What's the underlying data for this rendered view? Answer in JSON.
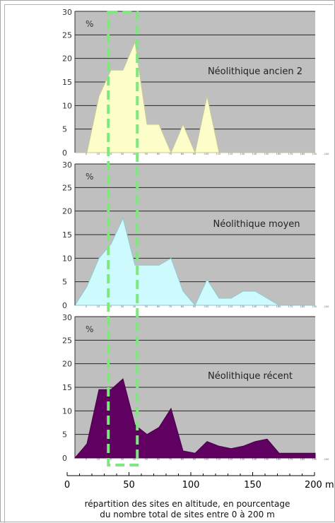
{
  "chart_data": {
    "type": "area",
    "y_unit_label": "%",
    "ylim": [
      0,
      30
    ],
    "y_ticks": [
      "0",
      "5",
      "10",
      "15",
      "20",
      "25",
      "30"
    ],
    "x_axis": {
      "unit": "m",
      "xlim": [
        0,
        200
      ],
      "tick_labels": [
        "0",
        "50",
        "100",
        "150",
        "200 m"
      ],
      "ticks": [
        0,
        50,
        100,
        150,
        200
      ]
    },
    "x_categories": [
      "0",
      "10",
      "20",
      "30",
      "40",
      "50",
      "60",
      "70",
      "80",
      "90",
      "100",
      "110",
      "120",
      "130",
      "140",
      "150",
      "160",
      "170",
      "180",
      "190",
      "200"
    ],
    "series": [
      {
        "name": "Néolithique ancien 2",
        "color": "#fcfdc8",
        "stroke": "#c8c896",
        "values": [
          0,
          0,
          12,
          17.5,
          17.5,
          23.5,
          6,
          6,
          0,
          6,
          0,
          12,
          0,
          0,
          0,
          0,
          0,
          0,
          0,
          0,
          0
        ]
      },
      {
        "name": "Néolithique moyen",
        "color": "#ccfafd",
        "stroke": "#8ec9cc",
        "values": [
          0,
          4,
          10,
          13,
          18.5,
          8.5,
          8.5,
          8.5,
          10,
          3,
          0,
          5.5,
          1.5,
          1.5,
          3,
          3,
          1.5,
          0,
          0,
          0,
          0
        ]
      },
      {
        "name": "Néolithique récent",
        "color": "#600060",
        "stroke": "#4a004a",
        "values": [
          0,
          3,
          14.5,
          14.5,
          16.8,
          7,
          5,
          6.5,
          10.5,
          1.5,
          1,
          3.5,
          2.5,
          2,
          2.5,
          3.5,
          4,
          1,
          1,
          1,
          1
        ]
      }
    ],
    "highlight": {
      "x_from": 35,
      "x_to": 55,
      "color": "#7ee87e"
    },
    "caption_lines": [
      "répartition des sites en altitude, en pourcentage",
      "du nombre total de sites entre 0 à 200 m"
    ]
  }
}
